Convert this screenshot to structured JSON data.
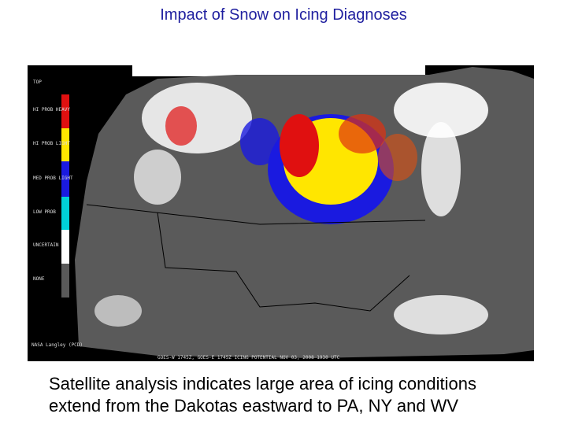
{
  "slide": {
    "title": "Impact of Snow on Icing Diagnoses",
    "image": {
      "legend": [
        "TOP",
        "HI PROB HEAVY",
        "HI PROB LIGHT",
        "MED PROB LIGHT",
        "LOW PROB",
        "UNCERTAIN",
        "NONE"
      ],
      "credit": "NASA Langley (PCD)",
      "footer": "GOES-W 1745Z, GOES-E 1745Z    ICING POTENTIAL    NOV 03, 2008    1930 UTC"
    },
    "caption": [
      "Satellite analysis indicates large area of icing conditions",
      "extend from the Dakotas eastward to PA, NY and WV"
    ]
  }
}
